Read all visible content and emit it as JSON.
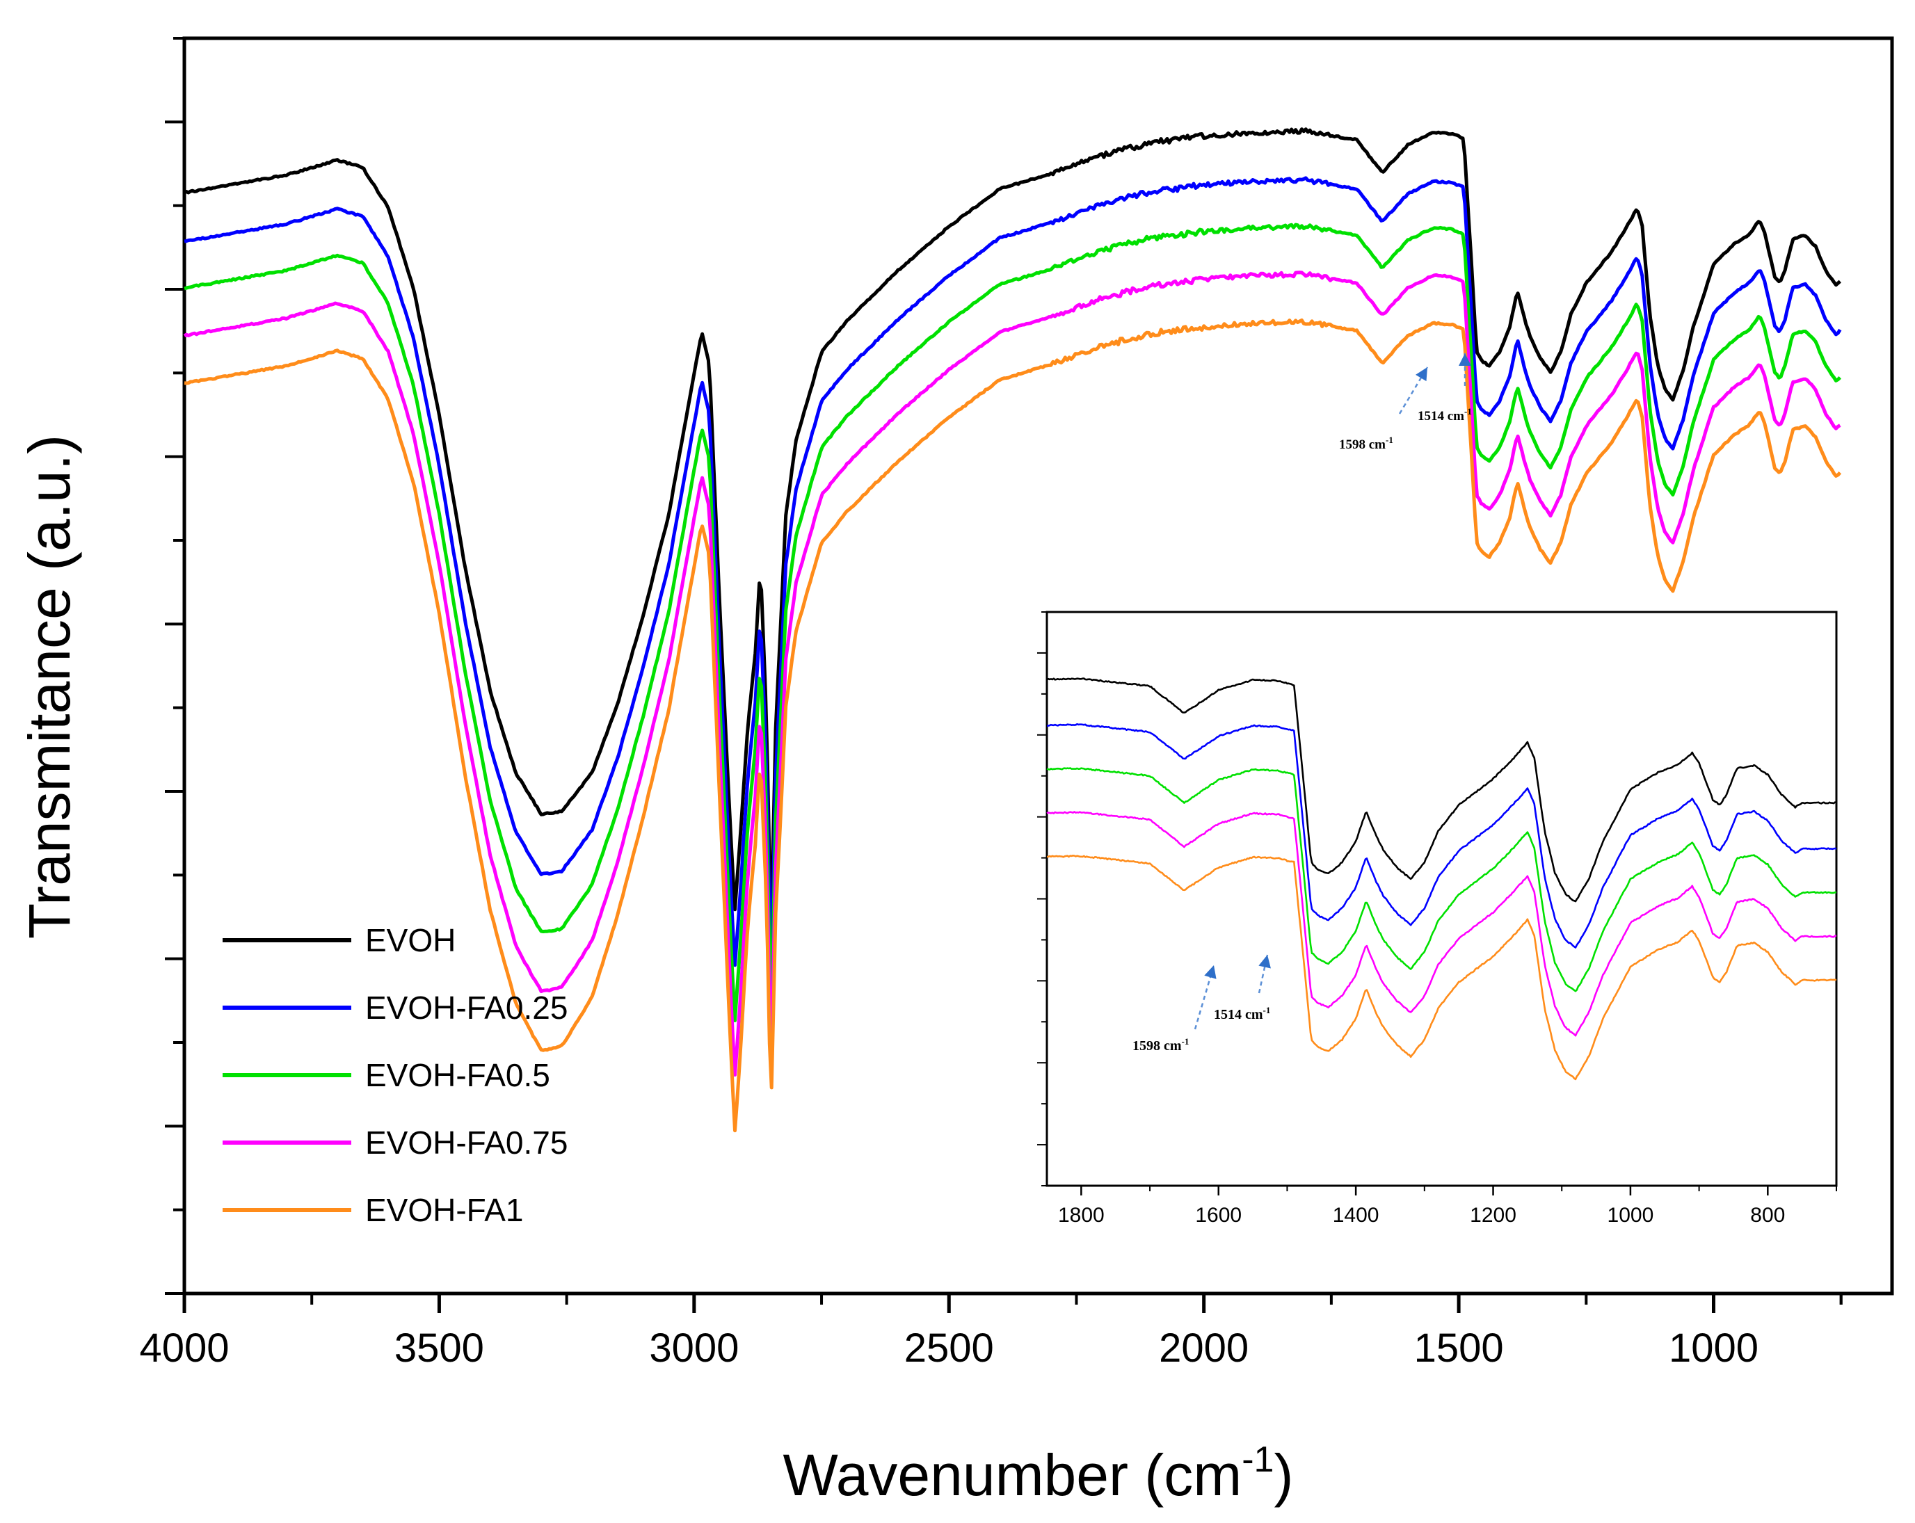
{
  "chart_data": [
    {
      "type": "line",
      "name": "main",
      "xlabel": "Wavenumber (cm",
      "xlabel_sup": "-1",
      "xlabel_close": ")",
      "ylabel": "Transmitance (a.u.)",
      "xlim": [
        4000,
        650
      ],
      "ylim": [
        0,
        100
      ],
      "x_ticks": [
        4000,
        3500,
        3000,
        2500,
        2000,
        1500,
        1000
      ],
      "y_tick_labels": false,
      "series": [
        {
          "name": "EVOH",
          "color": "#000000",
          "offset": 0,
          "points": [
            [
              4000,
              87.7
            ],
            [
              3800,
              89.1
            ],
            [
              3700,
              90.3
            ],
            [
              3650,
              89.7
            ],
            [
              3600,
              86.5
            ],
            [
              3550,
              80
            ],
            [
              3500,
              70
            ],
            [
              3450,
              58
            ],
            [
              3400,
              48
            ],
            [
              3350,
              41.5
            ],
            [
              3300,
              38.2
            ],
            [
              3260,
              38.4
            ],
            [
              3200,
              41.5
            ],
            [
              3150,
              47
            ],
            [
              3100,
              54
            ],
            [
              3050,
              62
            ],
            [
              3010,
              71
            ],
            [
              2985,
              76.6
            ],
            [
              2970,
              74
            ],
            [
              2950,
              55
            ],
            [
              2930,
              38
            ],
            [
              2920,
              30.6
            ],
            [
              2910,
              36
            ],
            [
              2895,
              45
            ],
            [
              2880,
              51
            ],
            [
              2870,
              58
            ],
            [
              2858,
              46
            ],
            [
              2850,
              30
            ],
            [
              2848,
              30.5
            ],
            [
              2840,
              45
            ],
            [
              2820,
              62
            ],
            [
              2800,
              68
            ],
            [
              2750,
              75
            ],
            [
              2700,
              77.5
            ],
            [
              2600,
              81.5
            ],
            [
              2500,
              85
            ],
            [
              2400,
              88
            ],
            [
              2300,
              89.2
            ],
            [
              2200,
              90.7
            ],
            [
              2100,
              91.7
            ],
            [
              2000,
              92.2
            ],
            [
              1900,
              92.5
            ],
            [
              1800,
              92.6
            ],
            [
              1700,
              91.9
            ],
            [
              1650,
              89.3
            ],
            [
              1600,
              91.5
            ],
            [
              1550,
              92.5
            ],
            [
              1514,
              92.4
            ],
            [
              1490,
              92
            ],
            [
              1475,
              82
            ],
            [
              1465,
              75
            ],
            [
              1455,
              74.3
            ],
            [
              1440,
              73.9
            ],
            [
              1420,
              75
            ],
            [
              1400,
              77
            ],
            [
              1385,
              79.9
            ],
            [
              1370,
              77.5
            ],
            [
              1360,
              76.2
            ],
            [
              1340,
              74.5
            ],
            [
              1320,
              73.4
            ],
            [
              1300,
              75
            ],
            [
              1280,
              78
            ],
            [
              1250,
              80.5
            ],
            [
              1200,
              83
            ],
            [
              1170,
              85
            ],
            [
              1150,
              86.5
            ],
            [
              1140,
              85
            ],
            [
              1125,
              78
            ],
            [
              1110,
              74
            ],
            [
              1095,
              72
            ],
            [
              1080,
              71.2
            ],
            [
              1060,
              73.5
            ],
            [
              1040,
              77
            ],
            [
              1000,
              82
            ],
            [
              960,
              83.6
            ],
            [
              930,
              84.4
            ],
            [
              910,
              85.5
            ],
            [
              900,
              84.5
            ],
            [
              880,
              81
            ],
            [
              870,
              80.5
            ],
            [
              860,
              81.5
            ],
            [
              845,
              84
            ],
            [
              820,
              84.3
            ],
            [
              800,
              83.4
            ],
            [
              780,
              81.5
            ],
            [
              760,
              80.3
            ],
            [
              750,
              80.7
            ]
          ]
        },
        {
          "name": "EVOH-FA0.25",
          "color": "#0000ff",
          "offset": -3.9,
          "blue": true
        },
        {
          "name": "EVOH-FA0.5",
          "color": "#00e000",
          "offset": -7.6,
          "green": true
        },
        {
          "name": "EVOH-FA0.75",
          "color": "#ff00ff",
          "offset": -11.4,
          "magenta": true
        },
        {
          "name": "EVOH-FA1",
          "color": "#ff8c1a",
          "offset": -15.2,
          "orange": true
        }
      ],
      "annotations": [
        {
          "text": "1598 cm",
          "sup": "-1",
          "x": 1598
        },
        {
          "text": "1514 cm",
          "sup": "-1",
          "x": 1514
        }
      ]
    },
    {
      "type": "line",
      "name": "inset",
      "xlim": [
        1850,
        700
      ],
      "x_ticks": [
        1800,
        1600,
        1400,
        1200,
        1000,
        800
      ],
      "annotations": [
        {
          "text": "1598 cm",
          "sup": "-1",
          "x": 1598
        },
        {
          "text": "1514 cm",
          "sup": "-1",
          "x": 1514
        }
      ]
    }
  ],
  "legend": {
    "entries": [
      "EVOH",
      "EVOH-FA0.25",
      "EVOH-FA0.5",
      "EVOH-FA0.75",
      "EVOH-FA1"
    ],
    "colors": [
      "#000000",
      "#0000ff",
      "#00e000",
      "#ff00ff",
      "#ff8c1a"
    ],
    "position": "bottom-left"
  }
}
